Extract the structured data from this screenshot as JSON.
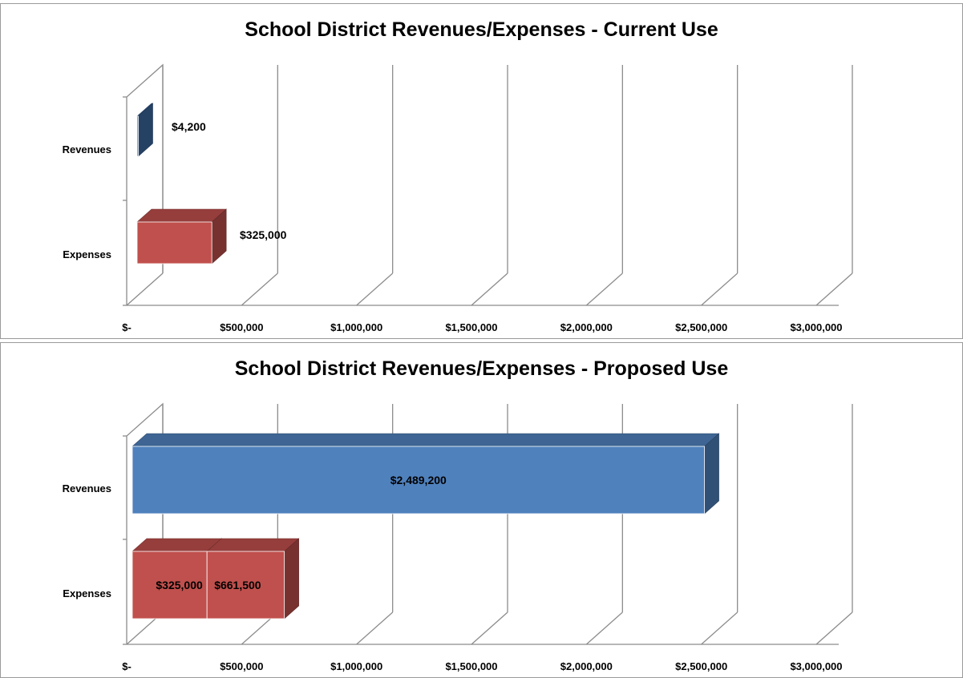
{
  "chart_data": [
    {
      "type": "bar",
      "orientation": "horizontal",
      "style": "3d",
      "title": "School District Revenues/Expenses - Current Use",
      "categories": [
        "Revenues",
        "Expenses"
      ],
      "series": [
        {
          "values": [
            4200,
            325000
          ],
          "colors": [
            "#3c6aa3",
            "#c0504d"
          ]
        }
      ],
      "data_labels": [
        "$4,200",
        "$325,000"
      ],
      "xlim": [
        0,
        3000000
      ],
      "x_ticks": [
        0,
        500000,
        1000000,
        1500000,
        2000000,
        2500000,
        3000000
      ],
      "x_tick_labels": [
        "$-",
        "$500,000",
        "$1,000,000",
        "$1,500,000",
        "$2,000,000",
        "$2,500,000",
        "$3,000,000"
      ],
      "grid": true,
      "legend": "none"
    },
    {
      "type": "bar",
      "orientation": "horizontal",
      "style": "3d-stacked",
      "title": "School District Revenues/Expenses - Proposed Use",
      "categories": [
        "Revenues",
        "Expenses"
      ],
      "series": [
        {
          "values": [
            2489200,
            325000
          ],
          "colors": [
            "#4f81bd",
            "#c0504d"
          ]
        },
        {
          "values": [
            0,
            336500
          ],
          "colors": [
            "#4f81bd",
            "#c0504d"
          ]
        }
      ],
      "data_labels": [
        "$2,489,200",
        "$325,000",
        "$661,500"
      ],
      "xlim": [
        0,
        3000000
      ],
      "x_ticks": [
        0,
        500000,
        1000000,
        1500000,
        2000000,
        2500000,
        3000000
      ],
      "x_tick_labels": [
        "$-",
        "$500,000",
        "$1,000,000",
        "$1,500,000",
        "$2,000,000",
        "$2,500,000",
        "$3,000,000"
      ],
      "grid": true,
      "legend": "none"
    }
  ]
}
